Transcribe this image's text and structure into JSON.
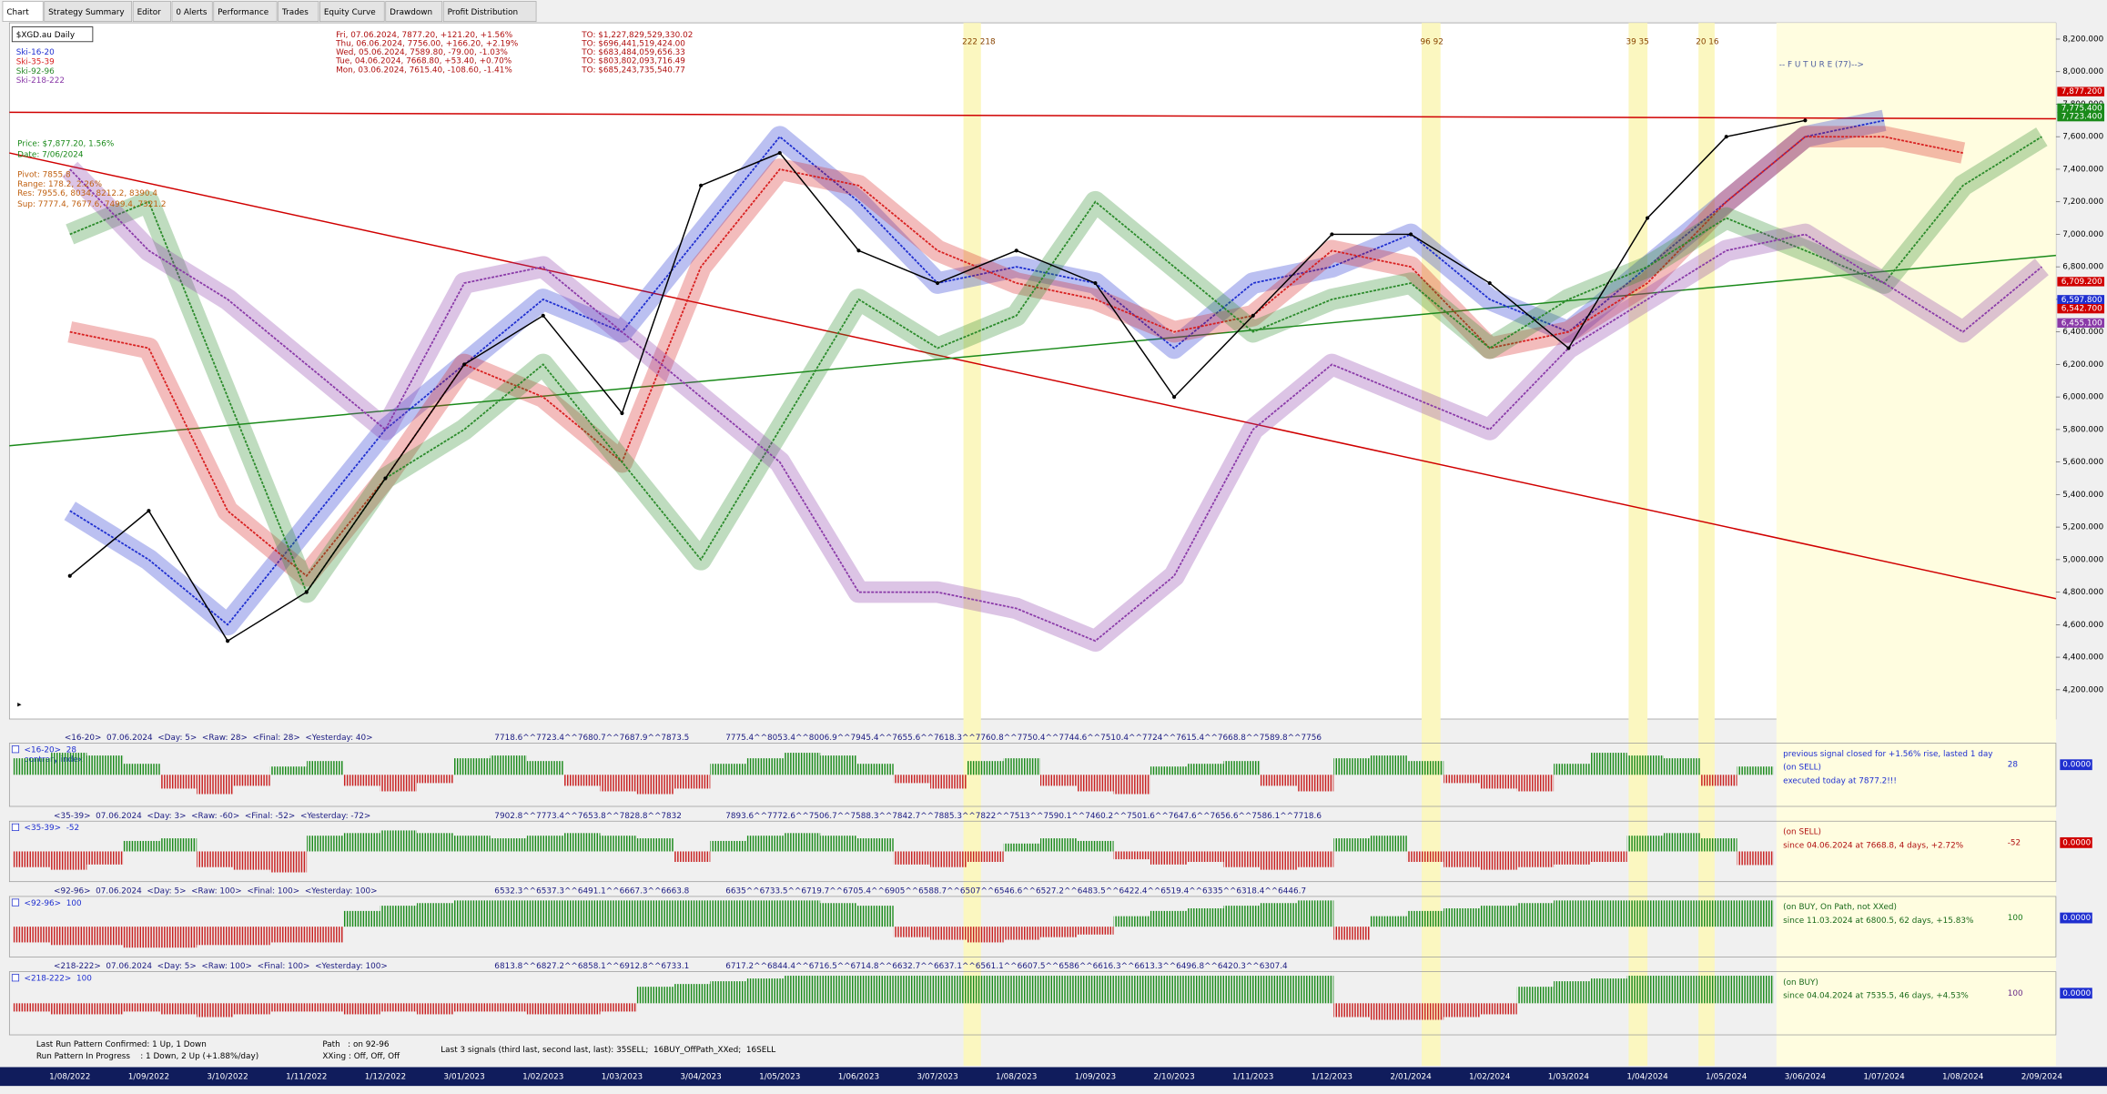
{
  "tabs": [
    "Chart",
    "Strategy Summary",
    "Editor",
    "0 Alerts",
    "Performance",
    "Trades",
    "Equity Curve",
    "Drawdown",
    "Profit Distribution"
  ],
  "chart_data": [
    {
      "type": "line",
      "title": "$XGD.au Daily",
      "categories": [
        "1/08/2022",
        "1/09/2022",
        "3/10/2022",
        "1/11/2022",
        "1/12/2022",
        "3/01/2023",
        "1/02/2023",
        "1/03/2023",
        "3/04/2023",
        "1/05/2023",
        "1/06/2023",
        "3/07/2023",
        "1/08/2023",
        "1/09/2023",
        "2/10/2023",
        "1/11/2023",
        "1/12/2023",
        "2/01/2024",
        "1/02/2024",
        "1/03/2024",
        "1/04/2024",
        "1/05/2024",
        "3/06/2024",
        "1/07/2024",
        "1/08/2024",
        "2/09/2024"
      ],
      "values": [
        4900,
        5300,
        4500,
        4800,
        5500,
        6200,
        6500,
        5900,
        7300,
        7500,
        6900,
        6700,
        6900,
        6700,
        6000,
        6500,
        7000,
        7000,
        6700,
        6300,
        7100,
        7600,
        7700,
        null,
        null,
        null
      ],
      "color": "#000000",
      "series": [
        {
          "name": "Ski-16-20",
          "color": "#1f2fd0",
          "values": [
            5300,
            5000,
            4600,
            5200,
            5800,
            6200,
            6600,
            6400,
            7000,
            7600,
            7200,
            6700,
            6800,
            6700,
            6300,
            6700,
            6800,
            7000,
            6600,
            6400,
            6800,
            7200,
            7600,
            7700,
            null,
            null
          ]
        },
        {
          "name": "Ski-35-39",
          "color": "#d82020",
          "values": [
            6400,
            6300,
            5300,
            4900,
            5500,
            6200,
            6000,
            5600,
            6800,
            7400,
            7300,
            6900,
            6700,
            6600,
            6400,
            6500,
            6900,
            6800,
            6300,
            6400,
            6700,
            7200,
            7600,
            7600,
            7500,
            null
          ]
        },
        {
          "name": "Ski-92-96",
          "color": "#2a8a2a",
          "values": [
            7000,
            7200,
            6000,
            4800,
            5500,
            5800,
            6200,
            5600,
            5000,
            5800,
            6600,
            6300,
            6500,
            7200,
            6800,
            6400,
            6600,
            6700,
            6300,
            6600,
            6800,
            7100,
            6900,
            6700,
            7300,
            7600
          ]
        },
        {
          "name": "Ski-218-222",
          "color": "#8a3aa8",
          "values": [
            7400,
            6900,
            6600,
            6200,
            5800,
            6700,
            6800,
            6400,
            6000,
            5600,
            4800,
            4800,
            4700,
            4500,
            4900,
            5800,
            6200,
            6000,
            5800,
            6300,
            6600,
            6900,
            7000,
            6700,
            6400,
            6800
          ]
        }
      ],
      "trendlines": [
        {
          "color": "#d00000",
          "values": [
            7500,
            4760
          ]
        },
        {
          "color": "#d00000",
          "values": [
            7750,
            7710
          ]
        },
        {
          "color": "#1a8a1a",
          "values": [
            5700,
            6870
          ]
        }
      ],
      "ylim": [
        4020,
        8300
      ],
      "yticks": [
        {
          "value": 4200,
          "label": "4,200.000"
        },
        {
          "value": 4400,
          "label": "4,400.000"
        },
        {
          "value": 4600,
          "label": "4,600.000"
        },
        {
          "value": 4800,
          "label": "4,800.000"
        },
        {
          "value": 5000,
          "label": "5,000.000"
        },
        {
          "value": 5200,
          "label": "5,200.000"
        },
        {
          "value": 5400,
          "label": "5,400.000"
        },
        {
          "value": 5600,
          "label": "5,600.000"
        },
        {
          "value": 5800,
          "label": "5,800.000"
        },
        {
          "value": 6000,
          "label": "6,000.000"
        },
        {
          "value": 6200,
          "label": "6,200.000"
        },
        {
          "value": 6400,
          "label": "6,400.000"
        },
        {
          "value": 6600,
          "label": "6,600.000"
        },
        {
          "value": 6800,
          "label": "6,800.000"
        },
        {
          "value": 7000,
          "label": "7,000.000"
        },
        {
          "value": 7200,
          "label": "7,200.000"
        },
        {
          "value": 7400,
          "label": "7,400.000"
        },
        {
          "value": 7600,
          "label": "7,600.000"
        },
        {
          "value": 7800,
          "label": "7,800.000"
        },
        {
          "value": 8000,
          "label": "8,000.000"
        },
        {
          "value": 8200,
          "label": "8,200.000"
        }
      ],
      "price_tags": [
        {
          "value": 7877.2,
          "label": "7,877.200",
          "color": "#d00000"
        },
        {
          "value": 7775.4,
          "label": "7,775.400",
          "color": "#1a8a1a"
        },
        {
          "value": 7723.4,
          "label": "7,723.400",
          "color": "#1a8a1a"
        },
        {
          "value": 6709.2,
          "label": "6,709.200",
          "color": "#d00000"
        },
        {
          "value": 6597.8,
          "label": "6,597.800",
          "color": "#1f2fd0"
        },
        {
          "value": 6542.7,
          "label": "6,542.700",
          "color": "#d00000"
        },
        {
          "value": 6455.1,
          "label": "6,455.100",
          "color": "#8a3aa8"
        }
      ],
      "quote_lines": [
        "Fri, 07.06.2024, 7877.20, +121.20, +1.56%",
        "Thu, 06.06.2024, 7756.00, +166.20, +2.19%",
        "Wed, 05.06.2024, 7589.80, -79.00, -1.03%",
        "Tue, 04.06.2024, 7668.80, +53.40, +0.70%",
        "Mon, 03.06.2024, 7615.40, -108.60, -1.41%"
      ],
      "turnover_lines": [
        "TO: $1,227,829,529,330.02",
        "TO: $696,441,519,424.00",
        "TO: $683,484,059,656.33",
        "TO: $803,802,093,716.49",
        "TO: $685,243,735,540.77"
      ],
      "info_lines": [
        "Price: $7,877.20, 1.56%",
        "Date: 7/06/2024",
        "Pivot: 7855.8",
        "Range: 178.2, 2.26%",
        "Res: 7955.6, 8034, 8212.2, 8390.4",
        "Sup: 7777.4, 7677.6, 7499.4, 7321.2"
      ],
      "markers": [
        "222 218",
        "96 92",
        "39 35",
        "20 16"
      ],
      "future_label": "-- F U T U R E (77)-->"
    },
    {
      "type": "bar",
      "title": "<16-20>  07.06.2024  <Day: 5>  <Raw: 28>  <Final: 28>  <Yesterday: 40>",
      "left_labels": [
        "<16-20>  28",
        "contrary index"
      ],
      "sequences": [
        "7718.6^^7723.4^^7680.7^^7687.9^^7873.5",
        "7775.4^^8053.4^^8006.9^^7945.4^^7655.6^^7618.3^^7760.8^^7750.4^^7744.6^^7510.4^^7724^^7615.4^^7668.8^^7589.8^^7756"
      ],
      "status_lines": [
        "previous signal closed for +1.56% rise, lasted 1 day",
        "(on SELL)",
        "executed today at 7877.2!!!"
      ],
      "score": 28,
      "score_color": "#1f2fd0",
      "box": "0.0000",
      "box_color": "#1f2fd0",
      "ylim": [
        -100,
        100
      ],
      "values": [
        60,
        80,
        70,
        40,
        -50,
        -70,
        -40,
        30,
        50,
        -40,
        -60,
        -30,
        60,
        70,
        50,
        -40,
        -60,
        -70,
        -50,
        40,
        60,
        80,
        70,
        40,
        -30,
        -50,
        50,
        60,
        -40,
        -60,
        -70,
        30,
        40,
        50,
        -40,
        -60,
        60,
        70,
        50,
        -30,
        -50,
        -60,
        40,
        80,
        70,
        60,
        -40,
        30
      ]
    },
    {
      "type": "bar",
      "title": "<35-39>  07.06.2024  <Day: 3>  <Raw: -60>  <Final: -52>  <Yesterday: -72>",
      "left_labels": [
        "<35-39>  -52"
      ],
      "sequences": [
        "7902.8^^7773.4^^7653.8^^7828.8^^7832",
        "7893.6^^7772.6^^7506.7^^7588.3^^7842.7^^7885.3^^7822^^7513^^7590.1^^7460.2^^7501.6^^7647.6^^7656.6^^7586.1^^7718.6"
      ],
      "status_lines": [
        "(on SELL)",
        "since 04.06.2024 at 7668.8, 4 days, +2.72%"
      ],
      "score": -52,
      "score_color": "#b01010",
      "box": "0.0000",
      "box_color": "#d00000",
      "ylim": [
        -100,
        100
      ],
      "values": [
        -60,
        -70,
        -50,
        40,
        50,
        -60,
        -70,
        -80,
        60,
        70,
        80,
        70,
        60,
        50,
        60,
        70,
        60,
        50,
        -40,
        40,
        60,
        70,
        60,
        50,
        -50,
        -60,
        -40,
        30,
        50,
        40,
        -30,
        -50,
        -40,
        -60,
        -70,
        -60,
        50,
        60,
        -40,
        -60,
        -70,
        -60,
        -50,
        -40,
        60,
        70,
        50,
        -52
      ]
    },
    {
      "type": "bar",
      "title": "<92-96>  07.06.2024  <Day: 5>  <Raw: 100>  <Final: 100>  <Yesterday: 100>",
      "left_labels": [
        "<92-96>  100"
      ],
      "sequences": [
        "6532.3^^6537.3^^6491.1^^6667.3^^6663.8",
        "6635^^6733.5^^6719.7^^6705.4^^6905^^6588.7^^6507^^6546.6^^6527.2^^6483.5^^6422.4^^6519.4^^6335^^6318.4^^6446.7"
      ],
      "status_lines": [
        "(on BUY, On Path, not XXed)",
        "since 11.03.2024 at 6800.5, 62 days, +15.83%"
      ],
      "score": 100,
      "score_color": "#1a7a1a",
      "box": "0.0000",
      "box_color": "#1f2fd0",
      "ylim": [
        -100,
        100
      ],
      "values": [
        -60,
        -70,
        -70,
        -80,
        -80,
        -70,
        -70,
        -60,
        -60,
        60,
        80,
        90,
        100,
        100,
        100,
        100,
        100,
        100,
        100,
        100,
        100,
        100,
        90,
        80,
        -40,
        -50,
        -60,
        -50,
        -40,
        -30,
        40,
        60,
        70,
        80,
        90,
        100,
        -50,
        40,
        60,
        70,
        80,
        90,
        100,
        100,
        100,
        100,
        100,
        100
      ]
    },
    {
      "type": "bar",
      "title": "<218-222>  07.06.2024  <Day: 5>  <Raw: 100>  <Final: 100>  <Yesterday: 100>",
      "left_labels": [
        "<218-222>  100"
      ],
      "sequences": [
        "6813.8^^6827.2^^6858.1^^6912.8^^6733.1",
        "6717.2^^6844.4^^6716.5^^6714.8^^6632.7^^6637.1^^6561.1^^6607.5^^6586^^6616.3^^6613.3^^6496.8^^6420.3^^6307.4"
      ],
      "status_lines": [
        "(on BUY)",
        "since 04.04.2024 at 7535.5, 46 days, +4.53%"
      ],
      "score": 100,
      "score_color": "#6a2a88",
      "box": "0.0000",
      "box_color": "#1f2fd0",
      "ylim": [
        -100,
        100
      ],
      "values": [
        -30,
        -40,
        -40,
        -30,
        -40,
        -50,
        -40,
        -30,
        -30,
        -40,
        -30,
        -40,
        -30,
        -30,
        -40,
        -40,
        -30,
        60,
        70,
        80,
        90,
        100,
        100,
        100,
        100,
        100,
        100,
        100,
        100,
        100,
        100,
        100,
        100,
        100,
        100,
        100,
        -50,
        -60,
        -60,
        -50,
        -40,
        60,
        80,
        90,
        100,
        100,
        100,
        100
      ]
    }
  ],
  "status": {
    "last_run": "Last Run Pattern Confirmed: 1 Up, 1 Down",
    "in_progress": "Run Pattern In Progress    : 1 Down, 2 Up (+1.88%/day)",
    "path": "Path   : on 92-96",
    "xxing": "XXing : Off, Off, Off",
    "signals": "Last 3 signals (third last, second last, last): 35SELL;  16BUY_OffPath_XXed;  16SELL"
  }
}
